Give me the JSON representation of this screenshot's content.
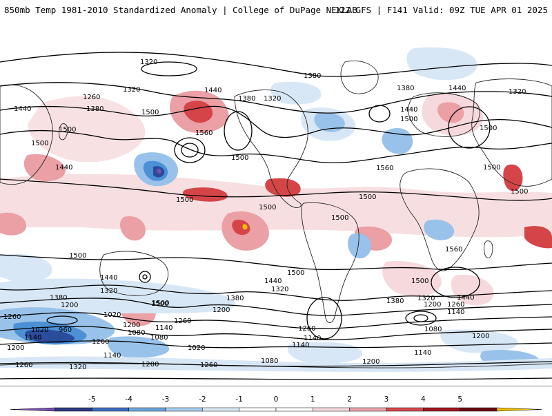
{
  "header": {
    "title_left": "850mb Temp 1981-2010 Standardized Anomaly | College of DuPage NEXLAB",
    "title_right": "12Z GFS | F141 Valid: 09Z TUE APR 01 2025"
  },
  "colors": {
    "warm_1": "#f6d9dc",
    "warm_2": "#eaa0a5",
    "warm_3": "#d54548",
    "warm_4": "#a11820",
    "cold_1": "#d8e7f6",
    "cold_2": "#99c2ea",
    "cold_3": "#4c91d6",
    "cold_4": "#2b4c9a",
    "extreme_warm": "#f0c000",
    "extreme_cold": "#7a4fb0"
  },
  "colorbar": {
    "ticks": [
      "-5",
      "-4",
      "-3",
      "-2",
      "-1",
      "0",
      "1",
      "2",
      "3",
      "4",
      "5"
    ],
    "colors": [
      "#2a3a86",
      "#3c6fc0",
      "#6ea6dd",
      "#a9cdee",
      "#dbe9f7",
      "#ffffff",
      "#ffffff",
      "#f7dadd",
      "#eba3a8",
      "#d6484c",
      "#a3161e",
      "#6b0d12"
    ],
    "min_arrow_color": "#7a4fb0",
    "max_arrow_color": "#f0c000"
  },
  "contour_labels": [
    "1320",
    "1320",
    "1260",
    "1380",
    "1440",
    "1380",
    "1320",
    "1380",
    "1380",
    "1440",
    "1320",
    "1440",
    "1500",
    "1500",
    "1560",
    "1500",
    "1440",
    "1500",
    "1500",
    "1440",
    "1500",
    "1560",
    "1500",
    "1500",
    "1500",
    "1500",
    "1500",
    "1500",
    "1500",
    "1500",
    "1500",
    "1560",
    "1500",
    "1440",
    "1440",
    "1380",
    "1320",
    "1200",
    "1260",
    "1020",
    "1020",
    "960",
    "1140",
    "1080",
    "1200",
    "1260",
    "1140",
    "1080",
    "1500",
    "1200",
    "1380",
    "1320",
    "1260",
    "1200",
    "1260",
    "1140",
    "1380",
    "1320",
    "1440",
    "1200",
    "1260",
    "1140",
    "1080",
    "1200",
    "1020",
    "1140",
    "1140",
    "1200",
    "1320",
    "1260",
    "1200",
    "1080",
    "1260",
    "1140"
  ]
}
